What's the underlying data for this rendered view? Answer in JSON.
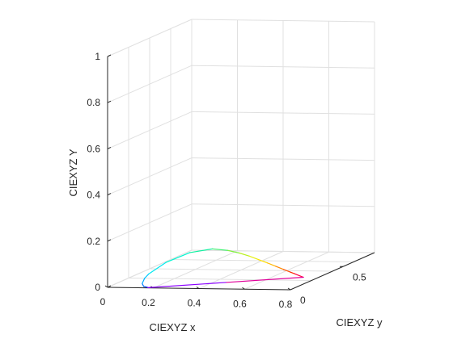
{
  "chart_data": {
    "type": "line",
    "view": "3d",
    "xlabel": "CIEXYZ x",
    "ylabel": "CIEXYZ y",
    "zlabel": "CIEXYZ Y",
    "xlim": [
      0,
      0.8
    ],
    "ylim": [
      0,
      0.8
    ],
    "zlim": [
      0,
      1
    ],
    "xticks": [
      "0",
      "0.2",
      "0.4",
      "0.6",
      "0.8"
    ],
    "yticks": [
      "0",
      "0.5"
    ],
    "zticks": [
      "0",
      "0.2",
      "0.4",
      "0.6",
      "0.8",
      "1"
    ],
    "grid": true,
    "series": [
      {
        "points": [
          {
            "x": 0.174,
            "y": 0.005,
            "z": 0,
            "color": "#7a00ff"
          },
          {
            "x": 0.173,
            "y": 0.005,
            "z": 0,
            "color": "#6a00ff"
          },
          {
            "x": 0.168,
            "y": 0.012,
            "z": 0,
            "color": "#3a1dff"
          },
          {
            "x": 0.144,
            "y": 0.03,
            "z": 0,
            "color": "#0040ff"
          },
          {
            "x": 0.11,
            "y": 0.09,
            "z": 0,
            "color": "#0078ff"
          },
          {
            "x": 0.07,
            "y": 0.2,
            "z": 0,
            "color": "#00a8ff"
          },
          {
            "x": 0.045,
            "y": 0.295,
            "z": 0,
            "color": "#00c8ff"
          },
          {
            "x": 0.008,
            "y": 0.538,
            "z": 0,
            "color": "#00e8f0"
          },
          {
            "x": 0.015,
            "y": 0.75,
            "z": 0,
            "color": "#00f5d0"
          },
          {
            "x": 0.075,
            "y": 0.834,
            "z": 0,
            "color": "#10f0a0"
          },
          {
            "x": 0.155,
            "y": 0.806,
            "z": 0,
            "color": "#40f070"
          },
          {
            "x": 0.23,
            "y": 0.754,
            "z": 0,
            "color": "#80f040"
          },
          {
            "x": 0.302,
            "y": 0.692,
            "z": 0,
            "color": "#b8f020"
          },
          {
            "x": 0.373,
            "y": 0.624,
            "z": 0,
            "color": "#e6f010"
          },
          {
            "x": 0.444,
            "y": 0.555,
            "z": 0,
            "color": "#ffe000"
          },
          {
            "x": 0.512,
            "y": 0.487,
            "z": 0,
            "color": "#ffb800"
          },
          {
            "x": 0.575,
            "y": 0.424,
            "z": 0,
            "color": "#ff8800"
          },
          {
            "x": 0.627,
            "y": 0.372,
            "z": 0,
            "color": "#ff5000"
          },
          {
            "x": 0.666,
            "y": 0.334,
            "z": 0,
            "color": "#ff2000"
          },
          {
            "x": 0.735,
            "y": 0.265,
            "z": 0,
            "color": "#ff0040"
          },
          {
            "x": 0.455,
            "y": 0.135,
            "z": 0,
            "color": "#e0009a"
          },
          {
            "x": 0.174,
            "y": 0.005,
            "z": 0,
            "color": "#8a00ff"
          }
        ]
      }
    ]
  }
}
